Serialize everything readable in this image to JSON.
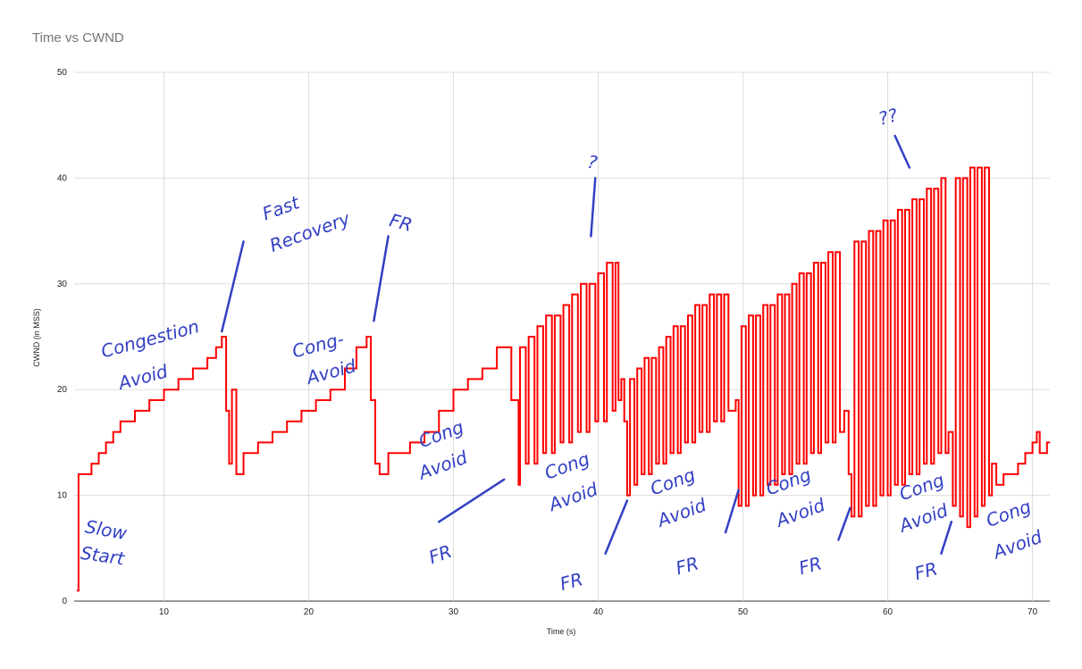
{
  "chart_data": {
    "type": "line",
    "title": "Time vs CWND",
    "xlabel": "Time (s)",
    "ylabel": "CWND (in MSS)",
    "xlim": [
      3.8,
      71.2
    ],
    "ylim": [
      0,
      50
    ],
    "x_ticks": [
      10,
      20,
      30,
      40,
      50,
      60,
      70
    ],
    "y_ticks": [
      0,
      10,
      20,
      30,
      40,
      50
    ],
    "grid": true,
    "legend": "none",
    "series": [
      {
        "color": "#ff0000",
        "points": [
          [
            4.0,
            1
          ],
          [
            4.1,
            12
          ],
          [
            4.5,
            12
          ],
          [
            5.0,
            13
          ],
          [
            5.5,
            14
          ],
          [
            6.0,
            15
          ],
          [
            6.5,
            16
          ],
          [
            7.0,
            17
          ],
          [
            7.5,
            17
          ],
          [
            8.0,
            18
          ],
          [
            9.0,
            19
          ],
          [
            10.0,
            20
          ],
          [
            11.0,
            21
          ],
          [
            12.0,
            22
          ],
          [
            13.0,
            23
          ],
          [
            13.6,
            24
          ],
          [
            14.0,
            25
          ],
          [
            14.3,
            18
          ],
          [
            14.5,
            13
          ],
          [
            14.7,
            20
          ],
          [
            15.0,
            12
          ],
          [
            15.5,
            14
          ],
          [
            16.5,
            15
          ],
          [
            17.5,
            16
          ],
          [
            18.5,
            17
          ],
          [
            19.5,
            18
          ],
          [
            20.5,
            19
          ],
          [
            21.5,
            20
          ],
          [
            22.5,
            22
          ],
          [
            23.3,
            24
          ],
          [
            24.0,
            25
          ],
          [
            24.3,
            19
          ],
          [
            24.6,
            13
          ],
          [
            24.9,
            12
          ],
          [
            25.5,
            14
          ],
          [
            27.0,
            15
          ],
          [
            28.0,
            16
          ],
          [
            29.0,
            18
          ],
          [
            30.0,
            20
          ],
          [
            31.0,
            21
          ],
          [
            32.0,
            22
          ],
          [
            33.0,
            24
          ],
          [
            33.8,
            24
          ],
          [
            34.0,
            19
          ],
          [
            34.5,
            11
          ],
          [
            34.6,
            24
          ],
          [
            35.0,
            13
          ],
          [
            35.2,
            25
          ],
          [
            35.6,
            13
          ],
          [
            35.8,
            26
          ],
          [
            36.2,
            14
          ],
          [
            36.4,
            27
          ],
          [
            36.8,
            14
          ],
          [
            37.0,
            27
          ],
          [
            37.4,
            15
          ],
          [
            37.6,
            28
          ],
          [
            38.0,
            15
          ],
          [
            38.2,
            29
          ],
          [
            38.6,
            16
          ],
          [
            38.8,
            30
          ],
          [
            39.2,
            16
          ],
          [
            39.4,
            30
          ],
          [
            39.8,
            17
          ],
          [
            40.0,
            31
          ],
          [
            40.4,
            17
          ],
          [
            40.6,
            32
          ],
          [
            41.0,
            18
          ],
          [
            41.2,
            32
          ],
          [
            41.4,
            19
          ],
          [
            41.6,
            21
          ],
          [
            41.8,
            17
          ],
          [
            42.0,
            10
          ],
          [
            42.2,
            21
          ],
          [
            42.5,
            11
          ],
          [
            42.7,
            22
          ],
          [
            43.0,
            12
          ],
          [
            43.2,
            23
          ],
          [
            43.5,
            12
          ],
          [
            43.7,
            23
          ],
          [
            44.0,
            13
          ],
          [
            44.2,
            24
          ],
          [
            44.5,
            13
          ],
          [
            44.7,
            25
          ],
          [
            45.0,
            14
          ],
          [
            45.2,
            26
          ],
          [
            45.5,
            14
          ],
          [
            45.7,
            26
          ],
          [
            46.0,
            15
          ],
          [
            46.2,
            27
          ],
          [
            46.5,
            15
          ],
          [
            46.7,
            28
          ],
          [
            47.0,
            16
          ],
          [
            47.2,
            28
          ],
          [
            47.5,
            16
          ],
          [
            47.7,
            29
          ],
          [
            48.0,
            17
          ],
          [
            48.2,
            29
          ],
          [
            48.5,
            17
          ],
          [
            48.7,
            29
          ],
          [
            49.0,
            18
          ],
          [
            49.5,
            19
          ],
          [
            49.7,
            9
          ],
          [
            49.9,
            26
          ],
          [
            50.2,
            9
          ],
          [
            50.4,
            27
          ],
          [
            50.7,
            10
          ],
          [
            50.9,
            27
          ],
          [
            51.2,
            10
          ],
          [
            51.4,
            28
          ],
          [
            51.7,
            11
          ],
          [
            51.9,
            28
          ],
          [
            52.2,
            11
          ],
          [
            52.4,
            29
          ],
          [
            52.7,
            12
          ],
          [
            52.9,
            29
          ],
          [
            53.2,
            12
          ],
          [
            53.4,
            30
          ],
          [
            53.7,
            13
          ],
          [
            53.9,
            31
          ],
          [
            54.2,
            13
          ],
          [
            54.4,
            31
          ],
          [
            54.7,
            14
          ],
          [
            54.9,
            32
          ],
          [
            55.2,
            14
          ],
          [
            55.4,
            32
          ],
          [
            55.7,
            15
          ],
          [
            55.9,
            33
          ],
          [
            56.2,
            15
          ],
          [
            56.4,
            33
          ],
          [
            56.7,
            16
          ],
          [
            57.0,
            18
          ],
          [
            57.3,
            12
          ],
          [
            57.5,
            8
          ],
          [
            57.7,
            34
          ],
          [
            58.0,
            8
          ],
          [
            58.2,
            34
          ],
          [
            58.5,
            9
          ],
          [
            58.7,
            35
          ],
          [
            59.0,
            9
          ],
          [
            59.2,
            35
          ],
          [
            59.5,
            10
          ],
          [
            59.7,
            36
          ],
          [
            60.0,
            10
          ],
          [
            60.2,
            36
          ],
          [
            60.5,
            11
          ],
          [
            60.7,
            37
          ],
          [
            61.0,
            11
          ],
          [
            61.2,
            37
          ],
          [
            61.5,
            12
          ],
          [
            61.7,
            38
          ],
          [
            62.0,
            12
          ],
          [
            62.2,
            38
          ],
          [
            62.5,
            13
          ],
          [
            62.7,
            39
          ],
          [
            63.0,
            13
          ],
          [
            63.2,
            39
          ],
          [
            63.5,
            14
          ],
          [
            63.7,
            40
          ],
          [
            64.0,
            14
          ],
          [
            64.2,
            16
          ],
          [
            64.5,
            9
          ],
          [
            64.7,
            40
          ],
          [
            65.0,
            8
          ],
          [
            65.2,
            40
          ],
          [
            65.5,
            7
          ],
          [
            65.7,
            41
          ],
          [
            66.0,
            8
          ],
          [
            66.2,
            41
          ],
          [
            66.5,
            9
          ],
          [
            66.7,
            41
          ],
          [
            67.0,
            10
          ],
          [
            67.2,
            13
          ],
          [
            67.5,
            11
          ],
          [
            68.0,
            12
          ],
          [
            68.5,
            12
          ],
          [
            69.0,
            13
          ],
          [
            69.5,
            14
          ],
          [
            70.0,
            15
          ],
          [
            70.3,
            16
          ],
          [
            70.5,
            14
          ],
          [
            71.0,
            15
          ],
          [
            71.2,
            15
          ]
        ]
      }
    ],
    "annotations": [
      {
        "text": "Slow",
        "x": 4.5,
        "y": 6.5,
        "rot": 10
      },
      {
        "text": "Start",
        "x": 4.2,
        "y": 4.0,
        "rot": 8
      },
      {
        "text": "Congestion",
        "x": 5.8,
        "y": 23.0,
        "rot": -15
      },
      {
        "text": "Avoid",
        "x": 7.0,
        "y": 20.0,
        "rot": -15
      },
      {
        "text": "Fast",
        "x": 17.0,
        "y": 36.0,
        "rot": -20
      },
      {
        "text": "Recovery",
        "x": 17.5,
        "y": 33.0,
        "rot": -20
      },
      {
        "text": "Cong-",
        "x": 19.0,
        "y": 23.0,
        "rot": -15
      },
      {
        "text": "Avoid",
        "x": 20.0,
        "y": 20.5,
        "rot": -15
      },
      {
        "text": "FR",
        "x": 25.5,
        "y": 35.5,
        "rot": 15
      },
      {
        "text": "?",
        "x": 39.2,
        "y": 41.0,
        "rot": 10
      },
      {
        "text": "??",
        "x": 59.5,
        "y": 45.0,
        "rot": -15
      },
      {
        "text": "Cong",
        "x": 27.8,
        "y": 14.5,
        "rot": -20
      },
      {
        "text": "Avoid",
        "x": 27.8,
        "y": 11.5,
        "rot": -20
      },
      {
        "text": "FR",
        "x": 28.5,
        "y": 3.5,
        "rot": -20
      },
      {
        "text": "Cong",
        "x": 36.5,
        "y": 11.5,
        "rot": -20
      },
      {
        "text": "Avoid",
        "x": 36.8,
        "y": 8.5,
        "rot": -20
      },
      {
        "text": "FR",
        "x": 37.5,
        "y": 1.0,
        "rot": -15
      },
      {
        "text": "Cong",
        "x": 43.8,
        "y": 10.0,
        "rot": -20
      },
      {
        "text": "Avoid",
        "x": 44.3,
        "y": 7.0,
        "rot": -20
      },
      {
        "text": "FR",
        "x": 45.5,
        "y": 2.5,
        "rot": -15
      },
      {
        "text": "Cong",
        "x": 51.8,
        "y": 10.0,
        "rot": -20
      },
      {
        "text": "Avoid",
        "x": 52.5,
        "y": 7.0,
        "rot": -20
      },
      {
        "text": "FR",
        "x": 54.0,
        "y": 2.5,
        "rot": -15
      },
      {
        "text": "Cong",
        "x": 61.0,
        "y": 9.5,
        "rot": -20
      },
      {
        "text": "Avoid",
        "x": 61.0,
        "y": 6.5,
        "rot": -20
      },
      {
        "text": "FR",
        "x": 62.0,
        "y": 2.0,
        "rot": -15
      },
      {
        "text": "Cong",
        "x": 67.0,
        "y": 7.0,
        "rot": -20
      },
      {
        "text": "Avoid",
        "x": 67.5,
        "y": 4.0,
        "rot": -20
      }
    ],
    "arrows": [
      [
        [
          14.0,
          25.5
        ],
        [
          15.5,
          34.0
        ]
      ],
      [
        [
          24.5,
          26.5
        ],
        [
          25.5,
          34.5
        ]
      ],
      [
        [
          39.5,
          34.5
        ],
        [
          39.8,
          40.0
        ]
      ],
      [
        [
          60.5,
          44.0
        ],
        [
          61.5,
          41.0
        ]
      ],
      [
        [
          29.0,
          7.5
        ],
        [
          33.5,
          11.5
        ]
      ],
      [
        [
          40.5,
          4.5
        ],
        [
          42.0,
          9.5
        ]
      ],
      [
        [
          48.8,
          6.5
        ],
        [
          49.7,
          10.5
        ]
      ],
      [
        [
          56.6,
          5.8
        ],
        [
          57.4,
          8.8
        ]
      ],
      [
        [
          63.7,
          4.5
        ],
        [
          64.4,
          7.5
        ]
      ]
    ]
  }
}
